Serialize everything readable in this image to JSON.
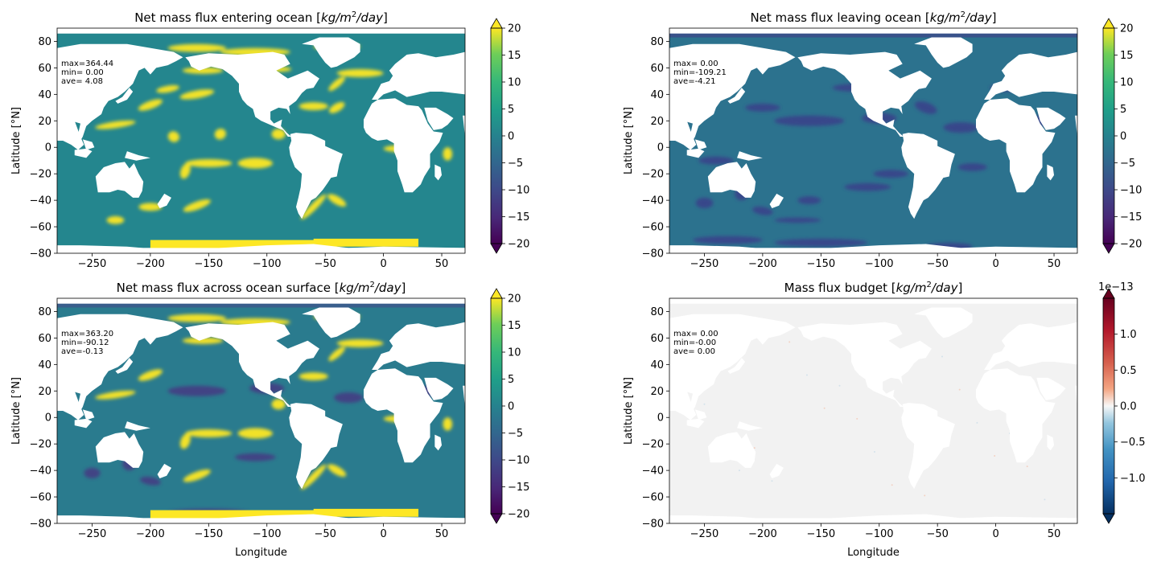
{
  "chart_data": [
    {
      "type": "heatmap",
      "title": "Net mass flux entering ocean [kg/m²/day]",
      "title_parts": {
        "prefix": "Net mass flux entering ocean [",
        "unit": "kg/m",
        "sup": "2",
        "suffix": "/day]"
      },
      "xlabel": "",
      "ylabel": "Latitude [°N]",
      "xlim": [
        -280,
        70
      ],
      "ylim": [
        -80,
        90
      ],
      "xticks": [
        -250,
        -200,
        -150,
        -100,
        -50,
        0,
        50
      ],
      "yticks": [
        -80,
        -60,
        -40,
        -20,
        0,
        20,
        40,
        60,
        80
      ],
      "stats": [
        "max=364.44",
        "min= 0.00",
        "ave= 4.08"
      ],
      "colormap": "viridis",
      "colorbar": {
        "vmin": -20,
        "vmax": 20,
        "ticks": [
          -20,
          -15,
          -10,
          -5,
          0,
          5,
          10,
          15,
          20
        ],
        "extend": "both",
        "offset_label": ""
      }
    },
    {
      "type": "heatmap",
      "title": "Net mass flux leaving ocean [kg/m²/day]",
      "title_parts": {
        "prefix": "Net mass flux leaving ocean [",
        "unit": "kg/m",
        "sup": "2",
        "suffix": "/day]"
      },
      "xlabel": "",
      "ylabel": "Latitude [°N]",
      "xlim": [
        -280,
        70
      ],
      "ylim": [
        -80,
        90
      ],
      "xticks": [
        -250,
        -200,
        -150,
        -100,
        -50,
        0,
        50
      ],
      "yticks": [
        -80,
        -60,
        -40,
        -20,
        0,
        20,
        40,
        60,
        80
      ],
      "stats": [
        "max= 0.00",
        "min=-109.21",
        "ave=-4.21"
      ],
      "colormap": "viridis",
      "colorbar": {
        "vmin": -20,
        "vmax": 20,
        "ticks": [
          -20,
          -15,
          -10,
          -5,
          0,
          5,
          10,
          15,
          20
        ],
        "extend": "both",
        "offset_label": ""
      }
    },
    {
      "type": "heatmap",
      "title": "Net mass flux across ocean surface [kg/m²/day]",
      "title_parts": {
        "prefix": "Net mass flux across ocean surface [",
        "unit": "kg/m",
        "sup": "2",
        "suffix": "/day]"
      },
      "xlabel": "Longitude",
      "ylabel": "Latitude [°N]",
      "xlim": [
        -280,
        70
      ],
      "ylim": [
        -80,
        90
      ],
      "xticks": [
        -250,
        -200,
        -150,
        -100,
        -50,
        0,
        50
      ],
      "yticks": [
        -80,
        -60,
        -40,
        -20,
        0,
        20,
        40,
        60,
        80
      ],
      "stats": [
        "max=363.20",
        "min=-90.12",
        "ave=-0.13"
      ],
      "colormap": "viridis",
      "colorbar": {
        "vmin": -20,
        "vmax": 20,
        "ticks": [
          -20,
          -15,
          -10,
          -5,
          0,
          5,
          10,
          15,
          20
        ],
        "extend": "both",
        "offset_label": ""
      }
    },
    {
      "type": "heatmap",
      "title": "Mass flux budget [kg/m²/day]",
      "title_parts": {
        "prefix": "Mass flux budget [",
        "unit": "kg/m",
        "sup": "2",
        "suffix": "/day]"
      },
      "xlabel": "Longitude",
      "ylabel": "Latitude [°N]",
      "xlim": [
        -280,
        70
      ],
      "ylim": [
        -80,
        90
      ],
      "xticks": [
        -250,
        -200,
        -150,
        -100,
        -50,
        0,
        50
      ],
      "yticks": [
        -80,
        -60,
        -40,
        -20,
        0,
        20,
        40,
        60,
        80
      ],
      "stats": [
        "max= 0.00",
        "min=-0.00",
        "ave= 0.00"
      ],
      "colormap": "RdBu_r",
      "colorbar": {
        "vmin": -1.5,
        "vmax": 1.5,
        "ticks": [
          -1.0,
          -0.5,
          0.0,
          0.5,
          1.0
        ],
        "tick_labels": [
          "−1.0",
          "−0.5",
          "0.0",
          "0.5",
          "1.0"
        ],
        "extend": "both",
        "offset_label": "1e−13"
      }
    }
  ]
}
